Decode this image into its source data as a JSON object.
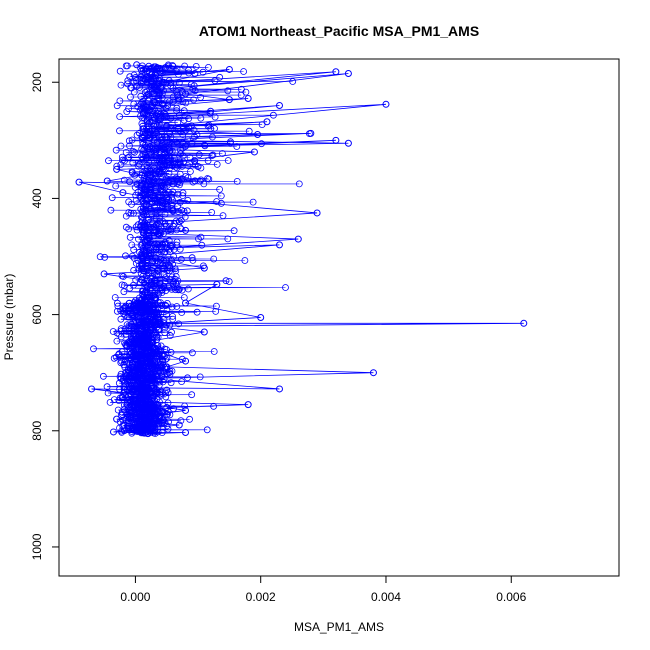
{
  "chart_data": {
    "type": "scatter",
    "title": "ATOM1 Northeast_Pacific MSA_PM1_AMS",
    "xlabel": "MSA_PM1_AMS",
    "ylabel": "Pressure (mbar)",
    "xlim": [
      -0.00122,
      0.00772
    ],
    "ylim": [
      1050,
      160
    ],
    "y_reversed": true,
    "x_ticks": [
      0.0,
      0.002,
      0.004,
      0.006
    ],
    "x_tick_labels": [
      "0.000",
      "0.002",
      "0.004",
      "0.006"
    ],
    "y_ticks": [
      200,
      400,
      600,
      800,
      1000
    ],
    "y_tick_labels": [
      "200",
      "400",
      "600",
      "800",
      "1000"
    ],
    "grid": false,
    "legend": "none",
    "series_color": "#0000ff",
    "marker": "open-circle",
    "line": true,
    "series": [
      {
        "x": [
          2e-05,
          0.00035,
          0.0001,
          0.00095,
          0.0002,
          0.0015,
          0.00045,
          0.0032,
          0.0006,
          0.0034,
          0.0008,
          0.0015,
          0.0003,
          0.0018,
          0.0001,
          0.0012,
          0.0004,
          0.0023,
          0.0003,
          0.004,
          0.0005,
          0.0021,
          0.00012,
          0.00195,
          0.0005,
          0.0028,
          0.0003,
          0.0034,
          0.0008,
          0.0032,
          0.0002,
          0.0019,
          0.0004,
          0.001,
          -0.0003,
          0.0001,
          -0.00045,
          0.0006,
          -0.0009,
          -0.0002,
          0.0003,
          0.0029,
          0.0007,
          0.0008,
          0.0002,
          0.0026,
          0.0005,
          0.0023,
          0.0001,
          0.0011,
          -0.0005,
          0.0001,
          0.0003,
          0.0013,
          0.0008,
          0.002,
          0.0004,
          0.0062,
          0.0003,
          0.0011,
          0.0,
          0.0008,
          0.0005,
          0.0038,
          0.0002,
          0.0023,
          0.0001,
          0.0005,
          -0.0007,
          0.0002,
          0.0001,
          0.0018,
          0.0005,
          0.0008,
          -0.0003,
          0.0007,
          -0.00035,
          0.0008,
          0.0002
        ],
        "y": [
          170,
          175,
          180,
          185,
          190,
          178,
          200,
          182,
          210,
          185,
          220,
          230,
          235,
          228,
          245,
          250,
          255,
          240,
          260,
          238,
          275,
          268,
          280,
          290,
          295,
          288,
          300,
          305,
          310,
          300,
          315,
          320,
          340,
          345,
          350,
          360,
          370,
          375,
          372,
          390,
          400,
          425,
          440,
          455,
          460,
          470,
          485,
          480,
          500,
          520,
          530,
          540,
          550,
          548,
          580,
          605,
          615,
          615,
          620,
          630,
          650,
          680,
          690,
          700,
          710,
          728,
          726,
          730,
          728,
          740,
          750,
          755,
          760,
          765,
          780,
          790,
          802,
          803,
          805
        ]
      }
    ]
  }
}
